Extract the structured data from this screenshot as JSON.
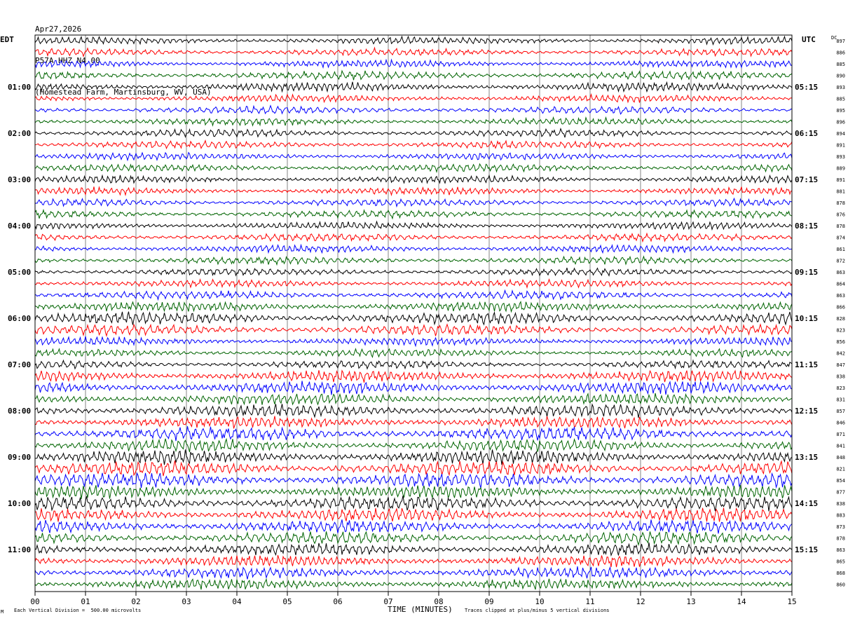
{
  "header": {
    "date": "Apr27,2026",
    "station": "P57A HHZ N4 00",
    "location": "(Homestead Farm, Martinsburg, WV, USA)"
  },
  "labels": {
    "left_tz": "EDT",
    "right_tz": "UTC",
    "dc_header": "DC",
    "xlabel": "TIME (MINUTES)"
  },
  "footer": {
    "scale_note": "Each Vertical Division =  500.00 microvolts",
    "clip_note": "Traces clipped at plus/minus 5 vertical divisions",
    "mark": "M"
  },
  "chart_data": {
    "type": "line",
    "title": "Apr27,2026 P57A HHZ N4 00 (Homestead Farm, Martinsburg, WV, USA)",
    "xlabel": "TIME (MINUTES)",
    "xlim": [
      0,
      15
    ],
    "x_ticks": [
      "00",
      "01",
      "02",
      "03",
      "04",
      "05",
      "06",
      "07",
      "08",
      "09",
      "10",
      "11",
      "12",
      "13",
      "14",
      "15"
    ],
    "trace_colors": [
      "#000000",
      "#ff0000",
      "#0000ff",
      "#006400"
    ],
    "left_hour_labels": [
      "01:00",
      "02:00",
      "03:00",
      "04:00",
      "05:00",
      "06:00",
      "07:00",
      "08:00",
      "09:00",
      "10:00",
      "11:00"
    ],
    "right_hour_labels": [
      "05:15",
      "06:15",
      "07:15",
      "08:15",
      "09:15",
      "10:15",
      "11:15",
      "12:15",
      "13:15",
      "14:15",
      "15:15"
    ],
    "dc_offsets": [
      897,
      886,
      885,
      890,
      893,
      885,
      895,
      896,
      894,
      891,
      893,
      889,
      891,
      881,
      878,
      876,
      878,
      874,
      861,
      872,
      863,
      864,
      863,
      866,
      828,
      823,
      856,
      842,
      847,
      838,
      823,
      831,
      857,
      846,
      871,
      841,
      848,
      821,
      854,
      877,
      838,
      883,
      873,
      878,
      863,
      865,
      868,
      860
    ],
    "amplitude_profile": [
      1,
      1,
      1,
      1.1,
      1.2,
      1,
      1,
      1,
      1,
      1,
      1,
      1,
      1,
      1,
      1,
      1,
      1,
      1,
      1,
      1,
      1,
      1,
      1.1,
      1.3,
      1.6,
      1.4,
      1.1,
      1,
      1.1,
      1.5,
      1.7,
      1.5,
      1.7,
      1.6,
      1.8,
      1.6,
      1.8,
      1.9,
      1.9,
      1.7,
      1.9,
      1.7,
      1.7,
      1.6,
      1.6,
      1.5,
      1.5,
      1.4
    ],
    "vertical_division_microvolts": 500,
    "clip_divisions": 5,
    "grid": true
  }
}
